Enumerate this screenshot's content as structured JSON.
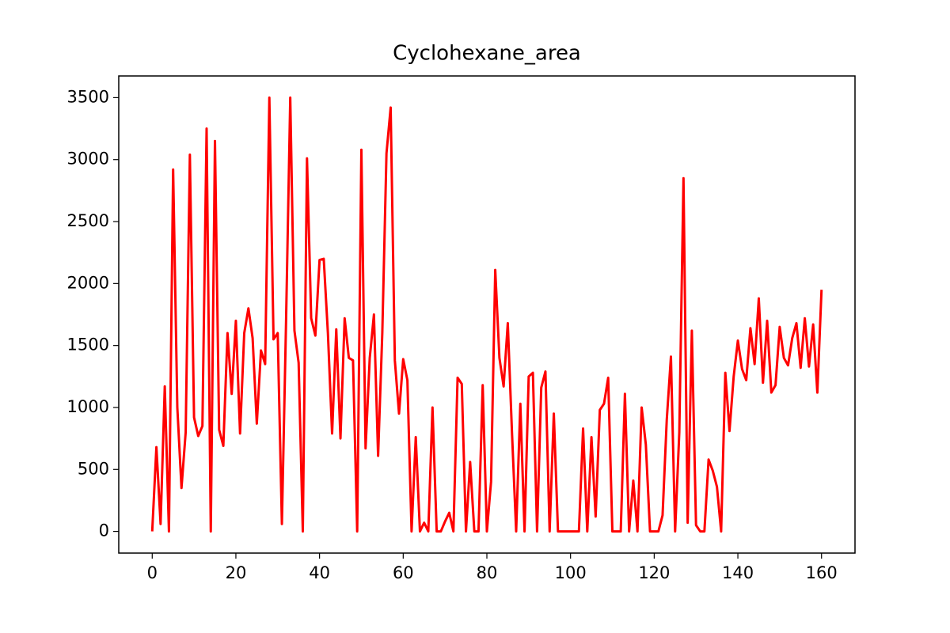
{
  "chart_data": {
    "type": "line",
    "title": "Cyclohexane_area",
    "x": [
      0,
      1,
      2,
      3,
      4,
      5,
      6,
      7,
      8,
      9,
      10,
      11,
      12,
      13,
      14,
      15,
      16,
      17,
      18,
      19,
      20,
      21,
      22,
      23,
      24,
      25,
      26,
      27,
      28,
      29,
      30,
      31,
      32,
      33,
      34,
      35,
      36,
      37,
      38,
      39,
      40,
      41,
      42,
      43,
      44,
      45,
      46,
      47,
      48,
      49,
      50,
      51,
      52,
      53,
      54,
      55,
      56,
      57,
      58,
      59,
      60,
      61,
      62,
      63,
      64,
      65,
      66,
      67,
      68,
      69,
      70,
      71,
      72,
      73,
      74,
      75,
      76,
      77,
      78,
      79,
      80,
      81,
      82,
      83,
      84,
      85,
      86,
      87,
      88,
      89,
      90,
      91,
      92,
      93,
      94,
      95,
      96,
      97,
      98,
      99,
      100,
      101,
      102,
      103,
      104,
      105,
      106,
      107,
      108,
      109,
      110,
      111,
      112,
      113,
      114,
      115,
      116,
      117,
      118,
      119,
      120,
      121,
      122,
      123,
      124,
      125,
      126,
      127,
      128,
      129,
      130,
      131,
      132,
      133,
      134,
      135,
      136,
      137,
      138,
      139,
      140,
      141,
      142,
      143,
      144,
      145,
      146,
      147,
      148,
      149,
      150,
      151,
      152,
      153,
      154,
      155,
      156,
      157,
      158,
      159,
      160
    ],
    "values": [
      0,
      680,
      60,
      1170,
      0,
      2920,
      1000,
      350,
      800,
      3040,
      920,
      770,
      850,
      3250,
      0,
      3150,
      820,
      690,
      1600,
      1110,
      1700,
      790,
      1600,
      1800,
      1560,
      870,
      1460,
      1350,
      3500,
      1550,
      1600,
      60,
      1700,
      3500,
      1620,
      1360,
      0,
      3010,
      1720,
      1580,
      2190,
      2200,
      1600,
      790,
      1630,
      750,
      1720,
      1400,
      1380,
      0,
      3080,
      670,
      1400,
      1750,
      610,
      1600,
      3050,
      3420,
      1380,
      950,
      1390,
      1220,
      0,
      760,
      0,
      70,
      0,
      1000,
      0,
      0,
      80,
      150,
      0,
      1240,
      1190,
      0,
      560,
      0,
      0,
      1180,
      0,
      400,
      2110,
      1400,
      1170,
      1680,
      800,
      0,
      1030,
      0,
      1250,
      1280,
      0,
      1160,
      1290,
      0,
      950,
      0,
      0,
      0,
      0,
      0,
      0,
      830,
      0,
      760,
      120,
      980,
      1030,
      1240,
      0,
      0,
      0,
      1110,
      0,
      410,
      0,
      1000,
      700,
      0,
      0,
      0,
      130,
      900,
      1410,
      0,
      800,
      2850,
      70,
      1620,
      50,
      0,
      0,
      580,
      490,
      360,
      0,
      1280,
      810,
      1250,
      1540,
      1310,
      1220,
      1640,
      1350,
      1880,
      1200,
      1700,
      1120,
      1180,
      1650,
      1400,
      1340,
      1560,
      1680,
      1320,
      1720,
      1330,
      1670,
      1120,
      1950
    ],
    "color": "#ff0000",
    "xlim": [
      -8,
      168
    ],
    "xticks": [
      0,
      20,
      40,
      60,
      80,
      100,
      120,
      140,
      160
    ],
    "ylim": [
      -175,
      3675
    ],
    "yticks": [
      0,
      500,
      1000,
      1500,
      2000,
      2500,
      3000,
      3500
    ]
  }
}
